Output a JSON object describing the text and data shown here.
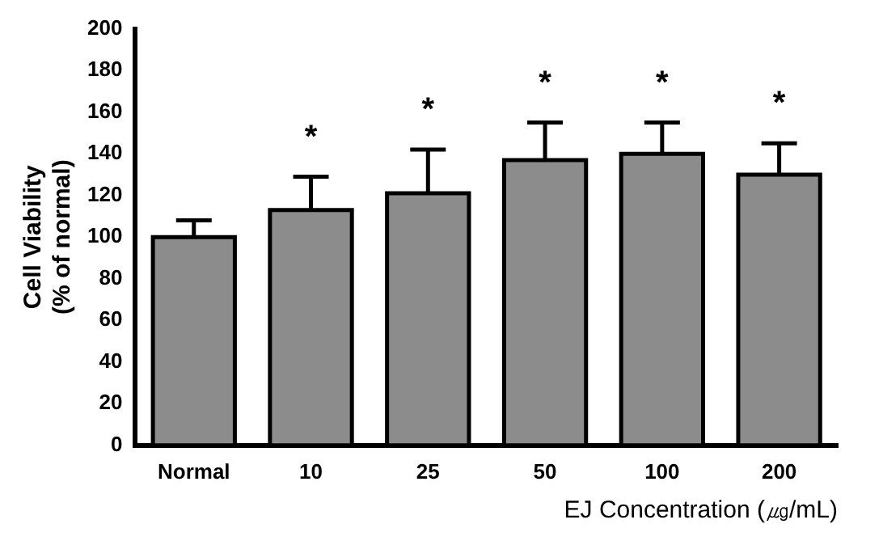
{
  "chart_data": {
    "type": "bar",
    "xlabel": "EJ Concentration (㎍/mL)",
    "ylabel": "Cell Viability\n(% of normal)",
    "categories": [
      "Normal",
      "10",
      "25",
      "50",
      "100",
      "200"
    ],
    "values": [
      100,
      113,
      121,
      137,
      140,
      130
    ],
    "errors": [
      [
        100,
        108
      ],
      [
        113,
        129
      ],
      [
        121,
        142
      ],
      [
        137,
        155
      ],
      [
        140,
        155
      ],
      [
        130,
        145
      ]
    ],
    "color": "#8c8c8c",
    "ylim": [
      0,
      200
    ],
    "yticks": [
      0,
      20,
      40,
      60,
      80,
      100,
      120,
      140,
      160,
      180,
      200
    ],
    "grid": false,
    "legend": false,
    "annotations": [
      "*",
      "*",
      "*",
      "*",
      "*"
    ]
  }
}
